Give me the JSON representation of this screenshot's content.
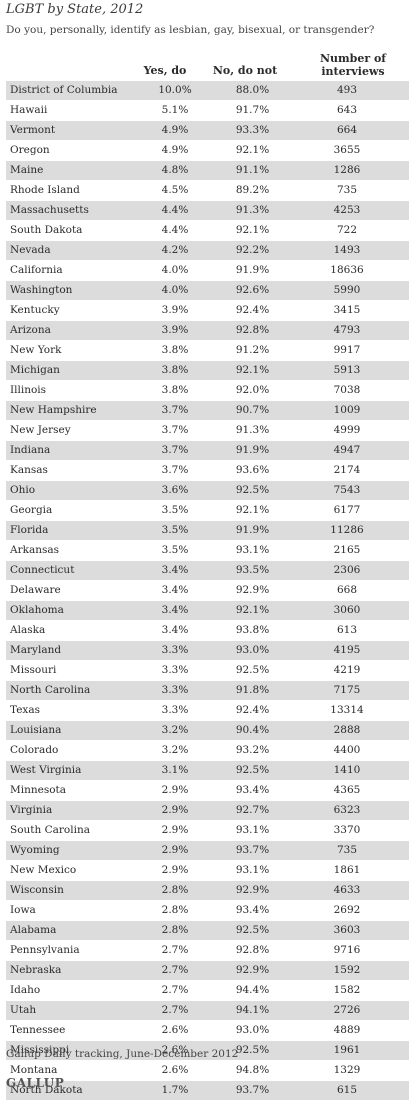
{
  "title": "LGBT by State, 2012",
  "subtitle": "Do you, personally, identify as lesbian, gay, bisexual, or transgender?",
  "columns": {
    "yes": "Yes, do",
    "no": "No, do not",
    "num_line1": "Number of",
    "num_line2": "interviews"
  },
  "rows": [
    {
      "state": "District of Columbia",
      "yes": "10.0%",
      "no": "88.0%",
      "n": "493"
    },
    {
      "state": "Hawaii",
      "yes": "5.1%",
      "no": "91.7%",
      "n": "643"
    },
    {
      "state": "Vermont",
      "yes": "4.9%",
      "no": "93.3%",
      "n": "664"
    },
    {
      "state": "Oregon",
      "yes": "4.9%",
      "no": "92.1%",
      "n": "3655"
    },
    {
      "state": "Maine",
      "yes": "4.8%",
      "no": "91.1%",
      "n": "1286"
    },
    {
      "state": "Rhode Island",
      "yes": "4.5%",
      "no": "89.2%",
      "n": "735"
    },
    {
      "state": "Massachusetts",
      "yes": "4.4%",
      "no": "91.3%",
      "n": "4253"
    },
    {
      "state": "South Dakota",
      "yes": "4.4%",
      "no": "92.1%",
      "n": "722"
    },
    {
      "state": "Nevada",
      "yes": "4.2%",
      "no": "92.2%",
      "n": "1493"
    },
    {
      "state": "California",
      "yes": "4.0%",
      "no": "91.9%",
      "n": "18636"
    },
    {
      "state": "Washington",
      "yes": "4.0%",
      "no": "92.6%",
      "n": "5990"
    },
    {
      "state": "Kentucky",
      "yes": "3.9%",
      "no": "92.4%",
      "n": "3415"
    },
    {
      "state": "Arizona",
      "yes": "3.9%",
      "no": "92.8%",
      "n": "4793"
    },
    {
      "state": "New York",
      "yes": "3.8%",
      "no": "91.2%",
      "n": "9917"
    },
    {
      "state": "Michigan",
      "yes": "3.8%",
      "no": "92.1%",
      "n": "5913"
    },
    {
      "state": "Illinois",
      "yes": "3.8%",
      "no": "92.0%",
      "n": "7038"
    },
    {
      "state": "New Hampshire",
      "yes": "3.7%",
      "no": "90.7%",
      "n": "1009"
    },
    {
      "state": "New Jersey",
      "yes": "3.7%",
      "no": "91.3%",
      "n": "4999"
    },
    {
      "state": "Indiana",
      "yes": "3.7%",
      "no": "91.9%",
      "n": "4947"
    },
    {
      "state": "Kansas",
      "yes": "3.7%",
      "no": "93.6%",
      "n": "2174"
    },
    {
      "state": "Ohio",
      "yes": "3.6%",
      "no": "92.5%",
      "n": "7543"
    },
    {
      "state": "Georgia",
      "yes": "3.5%",
      "no": "92.1%",
      "n": "6177"
    },
    {
      "state": "Florida",
      "yes": "3.5%",
      "no": "91.9%",
      "n": "11286"
    },
    {
      "state": "Arkansas",
      "yes": "3.5%",
      "no": "93.1%",
      "n": "2165"
    },
    {
      "state": "Connecticut",
      "yes": "3.4%",
      "no": "93.5%",
      "n": "2306"
    },
    {
      "state": "Delaware",
      "yes": "3.4%",
      "no": "92.9%",
      "n": "668"
    },
    {
      "state": "Oklahoma",
      "yes": "3.4%",
      "no": "92.1%",
      "n": "3060"
    },
    {
      "state": "Alaska",
      "yes": "3.4%",
      "no": "93.8%",
      "n": "613"
    },
    {
      "state": "Maryland",
      "yes": "3.3%",
      "no": "93.0%",
      "n": "4195"
    },
    {
      "state": "Missouri",
      "yes": "3.3%",
      "no": "92.5%",
      "n": "4219"
    },
    {
      "state": "North Carolina",
      "yes": "3.3%",
      "no": "91.8%",
      "n": "7175"
    },
    {
      "state": "Texas",
      "yes": "3.3%",
      "no": "92.4%",
      "n": "13314"
    },
    {
      "state": "Louisiana",
      "yes": "3.2%",
      "no": "90.4%",
      "n": "2888"
    },
    {
      "state": "Colorado",
      "yes": "3.2%",
      "no": "93.2%",
      "n": "4400"
    },
    {
      "state": "West Virginia",
      "yes": "3.1%",
      "no": "92.5%",
      "n": "1410"
    },
    {
      "state": "Minnesota",
      "yes": "2.9%",
      "no": "93.4%",
      "n": "4365"
    },
    {
      "state": "Virginia",
      "yes": "2.9%",
      "no": "92.7%",
      "n": "6323"
    },
    {
      "state": "South Carolina",
      "yes": "2.9%",
      "no": "93.1%",
      "n": "3370"
    },
    {
      "state": "Wyoming",
      "yes": "2.9%",
      "no": "93.7%",
      "n": "735"
    },
    {
      "state": "New Mexico",
      "yes": "2.9%",
      "no": "93.1%",
      "n": "1861"
    },
    {
      "state": "Wisconsin",
      "yes": "2.8%",
      "no": "92.9%",
      "n": "4633"
    },
    {
      "state": "Iowa",
      "yes": "2.8%",
      "no": "93.4%",
      "n": "2692"
    },
    {
      "state": "Alabama",
      "yes": "2.8%",
      "no": "92.5%",
      "n": "3603"
    },
    {
      "state": "Pennsylvania",
      "yes": "2.7%",
      "no": "92.8%",
      "n": "9716"
    },
    {
      "state": "Nebraska",
      "yes": "2.7%",
      "no": "92.9%",
      "n": "1592"
    },
    {
      "state": "Idaho",
      "yes": "2.7%",
      "no": "94.4%",
      "n": "1582"
    },
    {
      "state": "Utah",
      "yes": "2.7%",
      "no": "94.1%",
      "n": "2726"
    },
    {
      "state": "Tennessee",
      "yes": "2.6%",
      "no": "93.0%",
      "n": "4889"
    },
    {
      "state": "Mississippi",
      "yes": "2.6%",
      "no": "92.5%",
      "n": "1961"
    },
    {
      "state": "Montana",
      "yes": "2.6%",
      "no": "94.8%",
      "n": "1329"
    },
    {
      "state": "North Dakota",
      "yes": "1.7%",
      "no": "93.7%",
      "n": "615"
    }
  ],
  "source": "Gallup Daily tracking, June-December 2012",
  "logo": "GALLUP",
  "colors": {
    "stripe": "#dcdcdc",
    "text": "#2b2b2b"
  }
}
